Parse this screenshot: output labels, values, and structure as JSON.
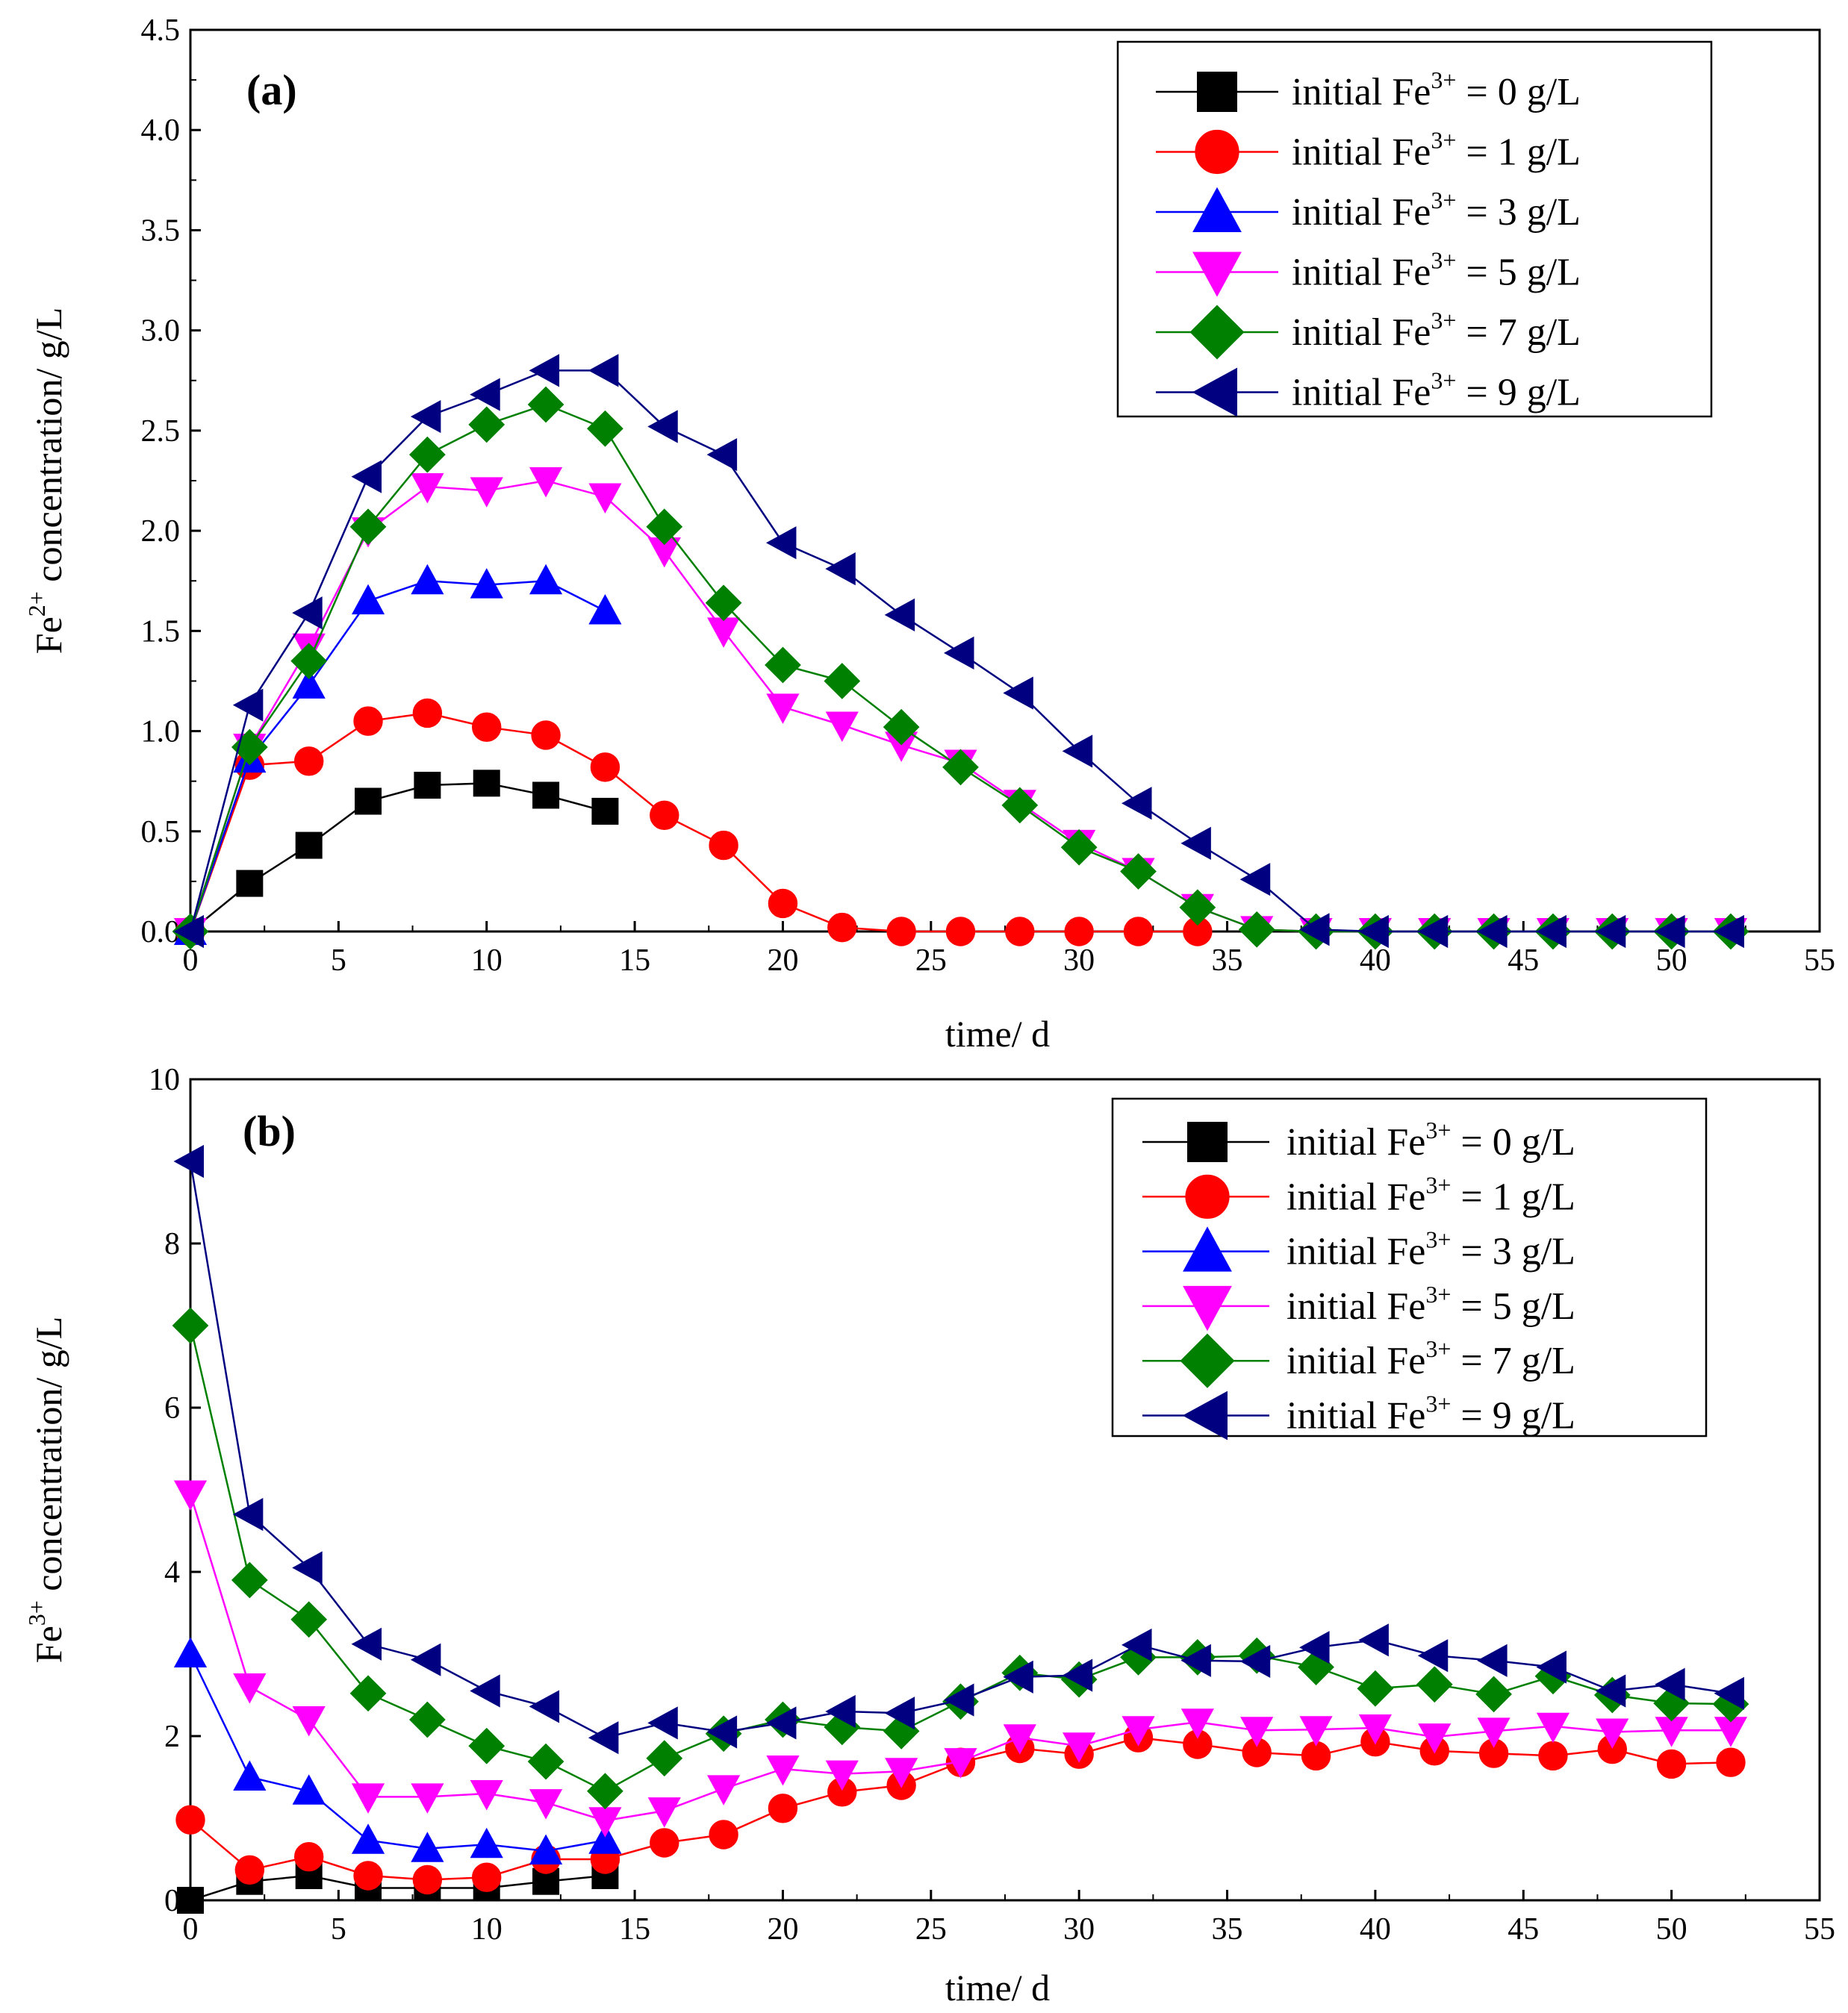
{
  "chart_data": [
    {
      "type": "line",
      "panel_label": "(a)",
      "xlabel": "time/ d",
      "ylabel": {
        "prefix": "Fe",
        "sup": "2+",
        "suffix": " concentration/ g/L"
      },
      "xlim": [
        0,
        55
      ],
      "ylim": [
        0,
        4.5
      ],
      "xticks": [
        "0",
        "5",
        "10",
        "15",
        "20",
        "25",
        "30",
        "35",
        "40",
        "45",
        "50",
        "55"
      ],
      "yticks": [
        "0.0",
        "0.5",
        "1.0",
        "1.5",
        "2.0",
        "2.5",
        "3.0",
        "3.5",
        "4.0",
        "4.5"
      ],
      "legend_position": "top-right",
      "series": [
        {
          "name": "initial Fe3+ = 0 g/L",
          "legend": {
            "prefix": "initial Fe",
            "sup": "3+",
            "suffix": " = 0 g/L"
          },
          "color": "#000000",
          "marker": "square",
          "x": [
            0,
            2,
            4,
            6,
            8,
            10,
            12,
            14
          ],
          "y": [
            0,
            0.24,
            0.43,
            0.65,
            0.73,
            0.74,
            0.68,
            0.6
          ]
        },
        {
          "name": "initial Fe3+ = 1 g/L",
          "legend": {
            "prefix": "initial Fe",
            "sup": "3+",
            "suffix": " = 1 g/L"
          },
          "color": "#ff0000",
          "marker": "circle",
          "x": [
            0,
            2,
            4,
            6,
            8,
            10,
            12,
            14,
            16,
            18,
            20,
            22,
            24,
            26,
            28,
            30,
            32,
            34
          ],
          "y": [
            0,
            0.83,
            0.85,
            1.05,
            1.09,
            1.02,
            0.98,
            0.82,
            0.58,
            0.43,
            0.14,
            0.02,
            0,
            0,
            0,
            0,
            0,
            0
          ]
        },
        {
          "name": "initial Fe3+ = 3 g/L",
          "legend": {
            "prefix": "initial Fe",
            "sup": "3+",
            "suffix": " = 3 g/L"
          },
          "color": "#0000ff",
          "marker": "triangle-up",
          "x": [
            0,
            2,
            4,
            6,
            8,
            10,
            12,
            14
          ],
          "y": [
            0,
            0.86,
            1.23,
            1.65,
            1.75,
            1.73,
            1.75,
            1.6
          ]
        },
        {
          "name": "initial Fe3+ = 5 g/L",
          "legend": {
            "prefix": "initial Fe",
            "sup": "3+",
            "suffix": " = 5 g/L"
          },
          "color": "#ff00ff",
          "marker": "triangle-down",
          "x": [
            0,
            2,
            4,
            6,
            8,
            10,
            12,
            14,
            16,
            18,
            20,
            22,
            24,
            26,
            28,
            30,
            32,
            34,
            36,
            38,
            40,
            42,
            44,
            46,
            48,
            50,
            52
          ],
          "y": [
            0,
            0.92,
            1.42,
            2.0,
            2.22,
            2.2,
            2.25,
            2.17,
            1.9,
            1.5,
            1.12,
            1.03,
            0.93,
            0.84,
            0.64,
            0.44,
            0.3,
            0.12,
            0.01,
            0,
            0,
            0,
            0,
            0,
            0,
            0,
            0
          ]
        },
        {
          "name": "initial Fe3+ = 7 g/L",
          "legend": {
            "prefix": "initial Fe",
            "sup": "3+",
            "suffix": " = 7 g/L"
          },
          "color": "#008000",
          "marker": "diamond",
          "x": [
            0,
            2,
            4,
            6,
            8,
            10,
            12,
            14,
            16,
            18,
            20,
            22,
            24,
            26,
            28,
            30,
            32,
            34,
            36,
            38,
            40,
            42,
            44,
            46,
            48,
            50,
            52
          ],
          "y": [
            0,
            0.92,
            1.35,
            2.02,
            2.38,
            2.53,
            2.63,
            2.51,
            2.02,
            1.64,
            1.33,
            1.25,
            1.02,
            0.82,
            0.63,
            0.42,
            0.3,
            0.12,
            0.01,
            0,
            0,
            0,
            0,
            0,
            0,
            0,
            0
          ]
        },
        {
          "name": "initial Fe3+ = 9 g/L",
          "legend": {
            "prefix": "initial Fe",
            "sup": "3+",
            "suffix": " = 9 g/L"
          },
          "color": "#000080",
          "marker": "triangle-left",
          "x": [
            0,
            2,
            4,
            6,
            8,
            10,
            12,
            14,
            16,
            18,
            20,
            22,
            24,
            26,
            28,
            30,
            32,
            34,
            36,
            38,
            40,
            42,
            44,
            46,
            48,
            50,
            52
          ],
          "y": [
            0,
            1.13,
            1.59,
            2.27,
            2.57,
            2.68,
            2.8,
            2.8,
            2.52,
            2.38,
            1.94,
            1.81,
            1.58,
            1.39,
            1.19,
            0.9,
            0.64,
            0.44,
            0.26,
            0.01,
            0,
            0,
            0,
            0,
            0,
            0,
            0
          ]
        }
      ]
    },
    {
      "type": "line",
      "panel_label": "(b)",
      "xlabel": "time/ d",
      "ylabel": {
        "prefix": "Fe",
        "sup": "3+",
        "suffix": " concentration/ g/L"
      },
      "xlim": [
        0,
        55
      ],
      "ylim": [
        0,
        10
      ],
      "xticks": [
        "0",
        "5",
        "10",
        "15",
        "20",
        "25",
        "30",
        "35",
        "40",
        "45",
        "50",
        "55"
      ],
      "yticks": [
        "0",
        "2",
        "4",
        "6",
        "8",
        "10"
      ],
      "legend_position": "top-right",
      "series": [
        {
          "name": "initial Fe3+ = 0 g/L",
          "legend": {
            "prefix": "initial Fe",
            "sup": "3+",
            "suffix": " = 0 g/L"
          },
          "color": "#000000",
          "marker": "square",
          "x": [
            0,
            2,
            4,
            6,
            8,
            10,
            12,
            14
          ],
          "y": [
            0,
            0.23,
            0.3,
            0.15,
            0.15,
            0.15,
            0.23,
            0.3
          ]
        },
        {
          "name": "initial Fe3+ = 1 g/L",
          "legend": {
            "prefix": "initial Fe",
            "sup": "3+",
            "suffix": " = 1 g/L"
          },
          "color": "#ff0000",
          "marker": "circle",
          "x": [
            0,
            2,
            4,
            6,
            8,
            10,
            12,
            14,
            16,
            18,
            20,
            22,
            24,
            26,
            28,
            30,
            32,
            34,
            36,
            38,
            40,
            42,
            44,
            46,
            48,
            50,
            52
          ],
          "y": [
            0.98,
            0.37,
            0.53,
            0.3,
            0.25,
            0.28,
            0.5,
            0.5,
            0.7,
            0.8,
            1.12,
            1.32,
            1.4,
            1.68,
            1.85,
            1.78,
            1.98,
            1.9,
            1.8,
            1.76,
            1.93,
            1.82,
            1.79,
            1.76,
            1.84,
            1.66,
            1.68
          ]
        },
        {
          "name": "initial Fe3+ = 3 g/L",
          "legend": {
            "prefix": "initial Fe",
            "sup": "3+",
            "suffix": " = 3 g/L"
          },
          "color": "#0000ff",
          "marker": "triangle-up",
          "x": [
            0,
            2,
            4,
            6,
            8,
            10,
            12,
            14
          ],
          "y": [
            3.0,
            1.5,
            1.33,
            0.73,
            0.63,
            0.68,
            0.6,
            0.73
          ]
        },
        {
          "name": "initial Fe3+ = 5 g/L",
          "legend": {
            "prefix": "initial Fe",
            "sup": "3+",
            "suffix": " = 5 g/L"
          },
          "color": "#ff00ff",
          "marker": "triangle-down",
          "x": [
            0,
            2,
            4,
            6,
            8,
            10,
            12,
            14,
            16,
            18,
            20,
            22,
            24,
            26,
            28,
            30,
            32,
            34,
            36,
            38,
            40,
            42,
            44,
            46,
            48,
            50,
            52
          ],
          "y": [
            4.95,
            2.6,
            2.2,
            1.26,
            1.26,
            1.3,
            1.19,
            0.97,
            1.09,
            1.36,
            1.6,
            1.54,
            1.57,
            1.69,
            1.98,
            1.88,
            2.08,
            2.17,
            2.07,
            2.08,
            2.1,
            1.99,
            2.06,
            2.12,
            2.05,
            2.07,
            2.07
          ]
        },
        {
          "name": "initial Fe3+ = 7 g/L",
          "legend": {
            "prefix": "initial Fe",
            "sup": "3+",
            "suffix": " = 7 g/L"
          },
          "color": "#008000",
          "marker": "diamond",
          "x": [
            0,
            2,
            4,
            6,
            8,
            10,
            12,
            14,
            16,
            18,
            20,
            22,
            24,
            26,
            28,
            30,
            32,
            34,
            36,
            38,
            40,
            42,
            44,
            46,
            48,
            50,
            52
          ],
          "y": [
            7.0,
            3.9,
            3.42,
            2.52,
            2.2,
            1.88,
            1.69,
            1.33,
            1.73,
            2.03,
            2.2,
            2.11,
            2.06,
            2.42,
            2.77,
            2.69,
            2.96,
            2.96,
            2.98,
            2.84,
            2.58,
            2.63,
            2.51,
            2.73,
            2.5,
            2.4,
            2.39
          ]
        },
        {
          "name": "initial Fe3+ = 9 g/L",
          "legend": {
            "prefix": "initial Fe",
            "sup": "3+",
            "suffix": " = 9 g/L"
          },
          "color": "#000080",
          "marker": "triangle-left",
          "x": [
            0,
            2,
            4,
            6,
            8,
            10,
            12,
            14,
            16,
            18,
            20,
            22,
            24,
            26,
            28,
            30,
            32,
            34,
            36,
            38,
            40,
            42,
            44,
            46,
            48,
            50,
            52
          ],
          "y": [
            9.0,
            4.7,
            4.05,
            3.12,
            2.93,
            2.55,
            2.36,
            1.98,
            2.16,
            2.05,
            2.16,
            2.3,
            2.28,
            2.44,
            2.72,
            2.74,
            3.11,
            2.92,
            2.91,
            3.08,
            3.17,
            2.98,
            2.92,
            2.84,
            2.55,
            2.63,
            2.52
          ]
        }
      ]
    }
  ]
}
